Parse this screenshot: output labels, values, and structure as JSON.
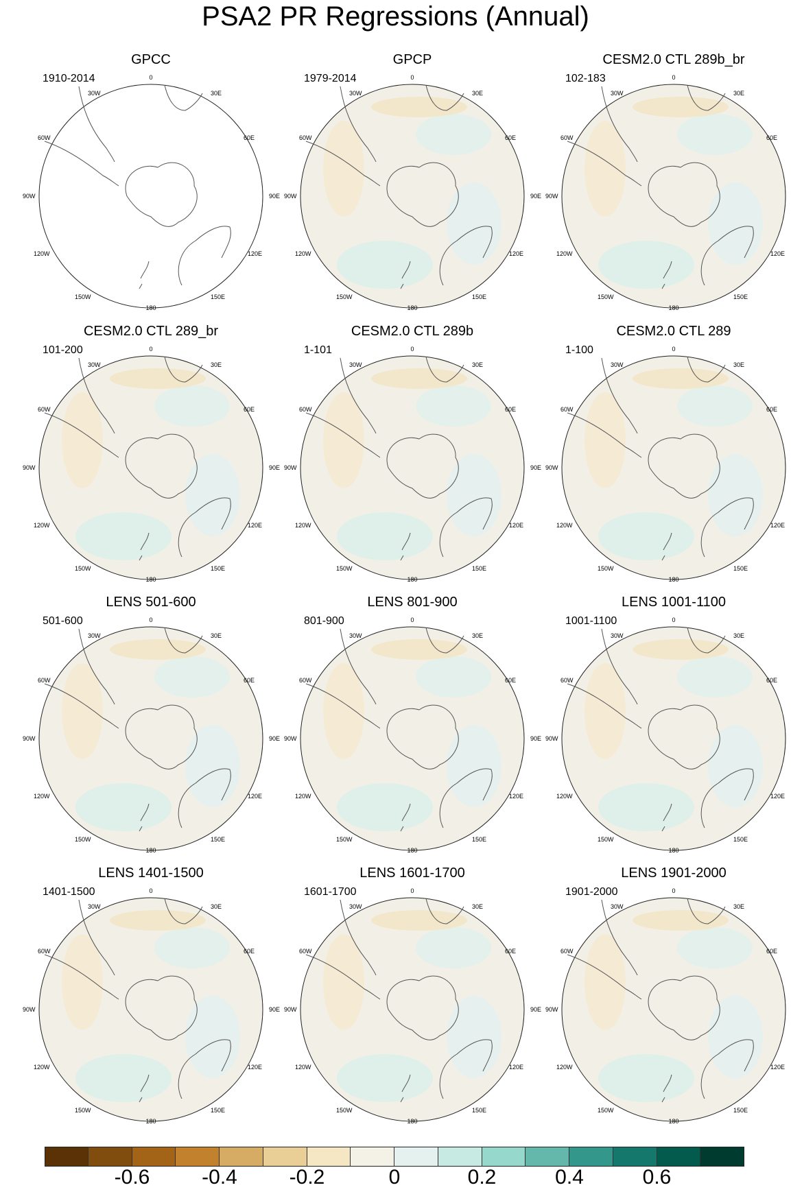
{
  "title": "PSA2 PR Regressions (Annual)",
  "panels": [
    {
      "title": "GPCC",
      "period": "1910-2014"
    },
    {
      "title": "GPCP",
      "period": "1979-2014"
    },
    {
      "title": "CESM2.0 CTL 289b_br",
      "period": "102-183"
    },
    {
      "title": "CESM2.0 CTL 289_br",
      "period": "101-200"
    },
    {
      "title": "CESM2.0 CTL 289b",
      "period": "1-101"
    },
    {
      "title": "CESM2.0 CTL 289",
      "period": "1-100"
    },
    {
      "title": "LENS 501-600",
      "period": "501-600"
    },
    {
      "title": "LENS 801-900",
      "period": "801-900"
    },
    {
      "title": "LENS 1001-1100",
      "period": "1001-1100"
    },
    {
      "title": "LENS 1401-1500",
      "period": "1401-1500"
    },
    {
      "title": "LENS 1601-1700",
      "period": "1601-1700"
    },
    {
      "title": "LENS 1901-2000",
      "period": "1901-2000"
    }
  ],
  "map_labels": {
    "top": "0",
    "bottom": "180",
    "ul1": "30W",
    "ur1": "30E",
    "ul2": "60W",
    "ur2": "60E",
    "left": "90W",
    "right": "90E",
    "ll2": "120W",
    "lr2": "120E",
    "ll1": "150W",
    "lr1": "150E"
  },
  "colorbar": {
    "colors": [
      "#5a3205",
      "#804d0e",
      "#a36418",
      "#c2822d",
      "#d6ab63",
      "#e9cf95",
      "#f6e7c4",
      "#f4f1e6",
      "#e4f1ef",
      "#c7ebe3",
      "#97d8cc",
      "#63b8ab",
      "#34978b",
      "#15786c",
      "#035b4e",
      "#003b30"
    ],
    "labels": [
      "-0.6",
      "-0.4",
      "-0.2",
      "0",
      "0.2",
      "0.4",
      "0.6"
    ]
  }
}
